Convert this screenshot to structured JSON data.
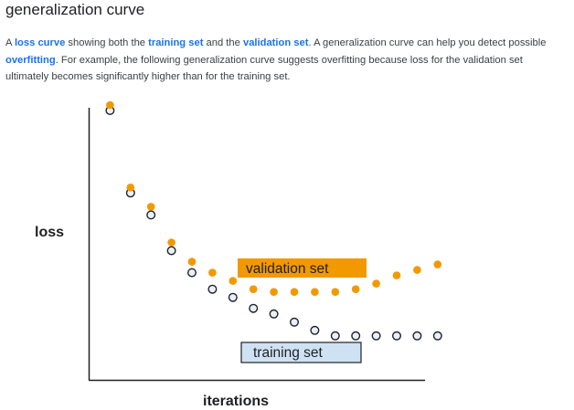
{
  "page": {
    "title": "generalization curve"
  },
  "description": {
    "parts": [
      {
        "text": "A ",
        "link": false
      },
      {
        "text": "loss curve",
        "link": true
      },
      {
        "text": " showing both the ",
        "link": false
      },
      {
        "text": "training set",
        "link": true
      },
      {
        "text": " and the ",
        "link": false
      },
      {
        "text": "validation set",
        "link": true
      },
      {
        "text": ". A generalization curve can help you detect possible ",
        "link": false
      },
      {
        "text": "overfitting",
        "link": true
      },
      {
        "text": ". For example, the following generalization curve suggests overfitting because loss for the validation set ultimately becomes significantly higher than for the training set.",
        "link": false
      }
    ]
  },
  "chart_data": {
    "type": "scatter",
    "title": "",
    "xlabel": "iterations",
    "ylabel": "loss",
    "grid": false,
    "x": [
      1,
      2,
      3,
      4,
      5,
      6,
      7,
      8,
      9,
      10,
      11,
      12,
      13,
      14,
      15,
      16,
      17
    ],
    "xlim": [
      0,
      17.5
    ],
    "ylim": [
      0,
      1.0
    ],
    "series": [
      {
        "name": "validation set",
        "color": "#f29900",
        "marker": "filled-circle",
        "values": [
          1.0,
          0.7,
          0.63,
          0.5,
          0.43,
          0.39,
          0.36,
          0.33,
          0.32,
          0.32,
          0.32,
          0.32,
          0.33,
          0.35,
          0.38,
          0.4,
          0.42
        ]
      },
      {
        "name": "training set",
        "color": "#e8f0fe",
        "marker": "outlined-circle",
        "values": [
          0.98,
          0.68,
          0.6,
          0.47,
          0.39,
          0.33,
          0.3,
          0.26,
          0.24,
          0.21,
          0.18,
          0.16,
          0.16,
          0.16,
          0.16,
          0.16,
          0.16
        ]
      }
    ],
    "legend": {
      "placement": "inline",
      "validation_label": "validation set",
      "training_label": "training set",
      "validation_bg": "#f29900",
      "training_bg": "#cfe2f3"
    }
  }
}
